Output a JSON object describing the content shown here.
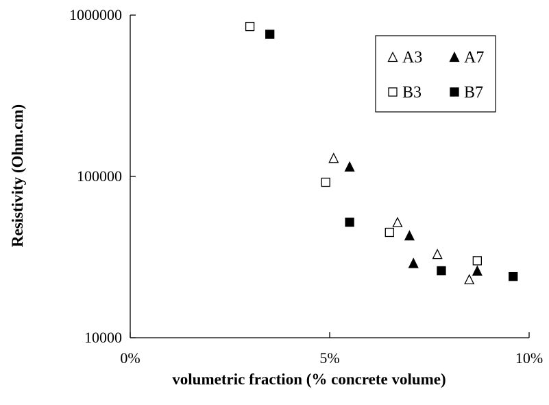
{
  "chart_data": {
    "type": "scatter",
    "title": "",
    "xlabel": "volumetric fraction (% concrete volume)",
    "ylabel": "Resistivity (Ohm.cm)",
    "x_scale": "linear",
    "y_scale": "log",
    "xlim": [
      0,
      10
    ],
    "ylim": [
      10000,
      1000000
    ],
    "x_ticks": [
      {
        "value": 0,
        "label": "0%"
      },
      {
        "value": 5,
        "label": "5%"
      },
      {
        "value": 10,
        "label": "10%"
      }
    ],
    "y_ticks": [
      {
        "value": 10000,
        "label": "10000"
      },
      {
        "value": 100000,
        "label": "100000"
      },
      {
        "value": 1000000,
        "label": "1000000"
      }
    ],
    "grid": false,
    "legend_position": "top-right",
    "series": [
      {
        "name": "A3",
        "marker": "triangle-open",
        "color": "#000000",
        "points": [
          {
            "x": 5.1,
            "y": 130000
          },
          {
            "x": 6.7,
            "y": 52000
          },
          {
            "x": 7.7,
            "y": 33000
          },
          {
            "x": 8.5,
            "y": 23000
          }
        ]
      },
      {
        "name": "A7",
        "marker": "triangle-filled",
        "color": "#000000",
        "points": [
          {
            "x": 5.5,
            "y": 115000
          },
          {
            "x": 7.0,
            "y": 43000
          },
          {
            "x": 7.1,
            "y": 29000
          },
          {
            "x": 8.7,
            "y": 26000
          }
        ]
      },
      {
        "name": "B3",
        "marker": "square-open",
        "color": "#000000",
        "points": [
          {
            "x": 3.0,
            "y": 850000
          },
          {
            "x": 4.9,
            "y": 92000
          },
          {
            "x": 6.5,
            "y": 45000
          },
          {
            "x": 8.7,
            "y": 30000
          }
        ]
      },
      {
        "name": "B7",
        "marker": "square-filled",
        "color": "#000000",
        "points": [
          {
            "x": 3.5,
            "y": 760000
          },
          {
            "x": 5.5,
            "y": 52000
          },
          {
            "x": 7.8,
            "y": 26000
          },
          {
            "x": 9.6,
            "y": 24000
          }
        ]
      }
    ]
  }
}
